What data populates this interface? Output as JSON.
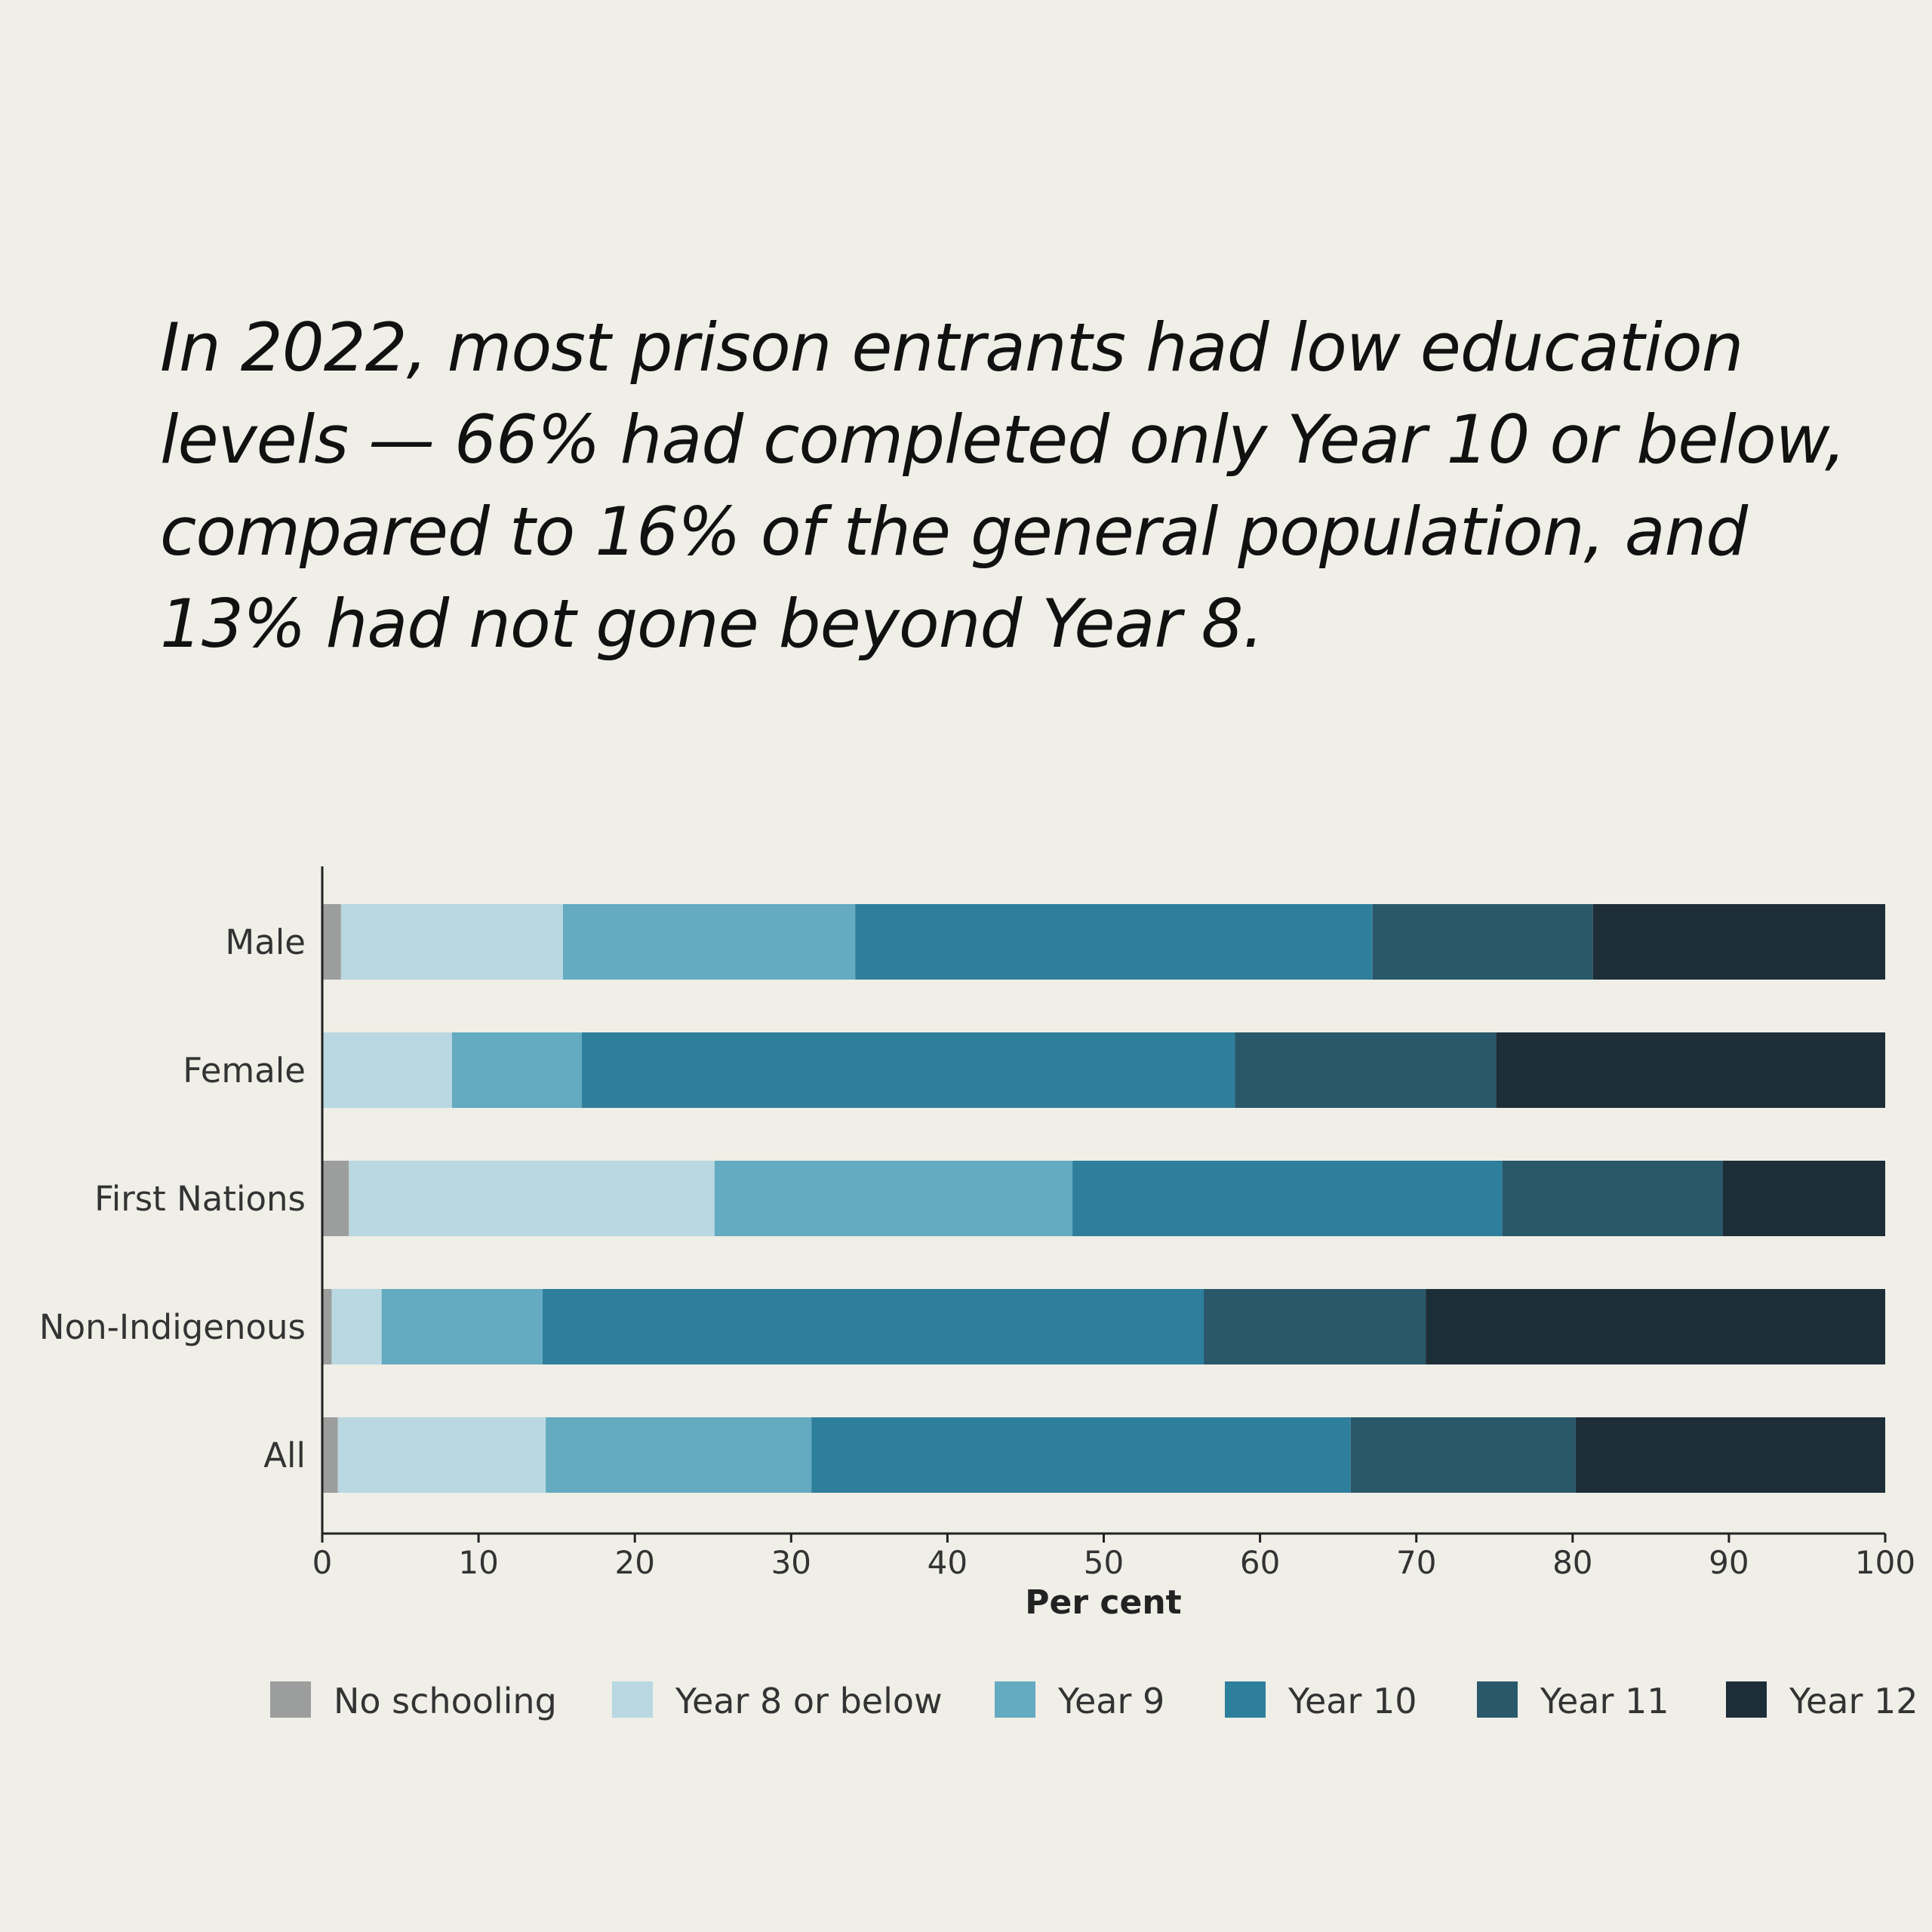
{
  "headline": "In 2022, most prison entrants had low education levels — 66% had completed only Year 10 or below, compared to 16% of the general population, and 13% had not gone beyond Year 8.",
  "chart_data": {
    "type": "bar",
    "orientation": "horizontal",
    "stacked": true,
    "categories": [
      "Male",
      "Female",
      "First Nations",
      "Non-Indigenous",
      "All"
    ],
    "series": [
      {
        "name": "No schooling",
        "color": "#9c9d9d",
        "values": [
          1.2,
          0,
          1.7,
          0.6,
          1.0
        ]
      },
      {
        "name": "Year 8 or below",
        "color": "#b9d8e1",
        "values": [
          14.2,
          8.3,
          23.4,
          3.2,
          13.3
        ]
      },
      {
        "name": "Year 9",
        "color": "#64aac1",
        "values": [
          18.7,
          8.3,
          22.9,
          10.3,
          17.0
        ]
      },
      {
        "name": "Year 10",
        "color": "#2e7f9c",
        "values": [
          33.1,
          41.8,
          27.5,
          42.3,
          34.5
        ]
      },
      {
        "name": "Year 11",
        "color": "#29586a",
        "values": [
          14.1,
          16.7,
          14.1,
          14.2,
          14.4
        ]
      },
      {
        "name": "Year 12",
        "color": "#1d2e38",
        "values": [
          18.7,
          24.9,
          10.4,
          29.4,
          19.8
        ]
      }
    ],
    "xlabel": "Per cent",
    "ylabel": "",
    "xlim": [
      0,
      100
    ],
    "xticks": [
      "0",
      "10",
      "20",
      "30",
      "40",
      "50",
      "60",
      "70",
      "80",
      "90",
      "100"
    ],
    "legend_position": "bottom"
  }
}
